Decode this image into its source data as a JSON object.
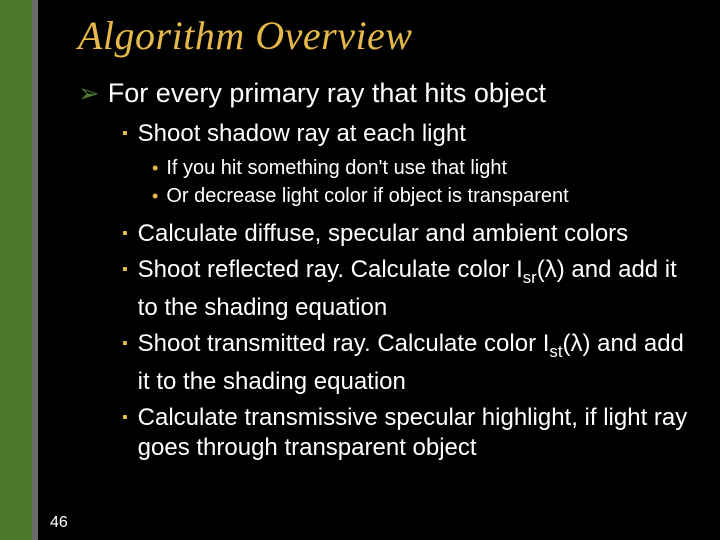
{
  "colors": {
    "background": "#000000",
    "stripe": "#4a7a2a",
    "stripe_edge": "#6a6a6a",
    "title": "#e5b84a",
    "body_text": "#ffffff",
    "bullet_l1": "#4a7a2a",
    "bullet_l2": "#e5b84a",
    "bullet_l3": "#e5b84a"
  },
  "fonts": {
    "title_family": "Garamond, Times New Roman, serif",
    "title_size_pt": 30,
    "body_family": "Arial, Helvetica, sans-serif",
    "l1_size_pt": 20,
    "l2_size_pt": 18,
    "l3_size_pt": 15
  },
  "title": "Algorithm Overview",
  "page_number": "46",
  "l1": {
    "bullet": "➢",
    "text": "For every primary ray that hits object"
  },
  "l2a": {
    "bullet": "▪",
    "text": "Shoot shadow ray at each light"
  },
  "l3a": {
    "bullet": "•",
    "text": "If you hit something don't use that light"
  },
  "l3b": {
    "bullet": "•",
    "text": "Or decrease light color if object is transparent"
  },
  "l2b": {
    "bullet": "▪",
    "text": "Calculate diffuse, specular and ambient colors"
  },
  "l2c": {
    "bullet": "▪",
    "pre": "Shoot reflected ray.  Calculate color I",
    "sub": "sr",
    "post": "(λ) and add it to the shading equation"
  },
  "l2d": {
    "bullet": "▪",
    "pre": "Shoot transmitted ray.  Calculate color I",
    "sub": "st",
    "post": "(λ) and add it to the shading equation"
  },
  "l2e": {
    "bullet": "▪",
    "text": "Calculate transmissive specular highlight, if light ray goes through transparent object"
  }
}
